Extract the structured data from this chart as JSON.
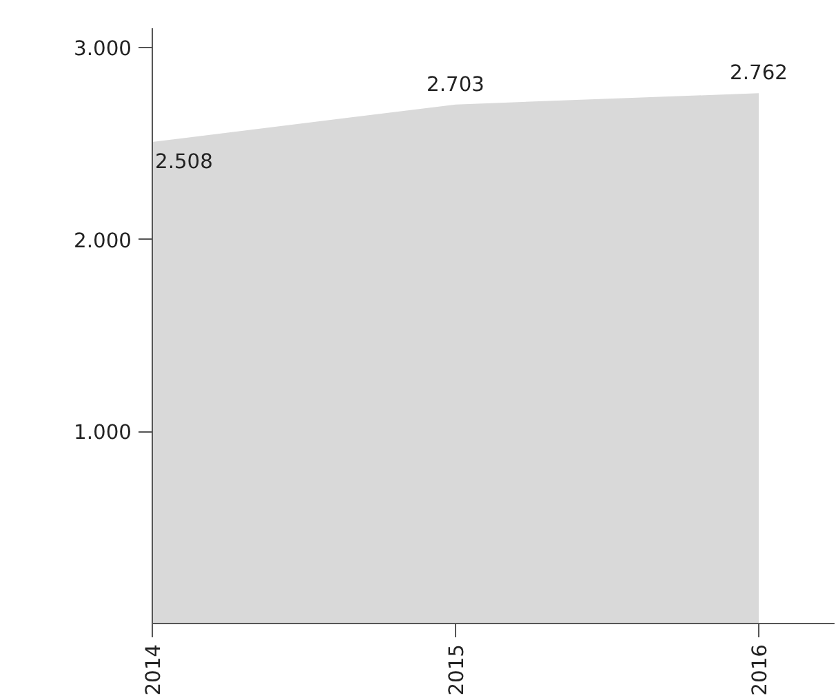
{
  "chart_data": {
    "type": "area",
    "x": [
      2014,
      2015,
      2016
    ],
    "series": [
      {
        "color": "#d9d9d9",
        "values": [
          2508,
          2703,
          2762
        ]
      }
    ],
    "value_labels": [
      "2.508",
      "2.703",
      "2.762"
    ],
    "xlim": [
      2014,
      2016.25
    ],
    "xticks": [
      2014,
      2015,
      2016
    ],
    "ylim": [
      0,
      3100
    ],
    "yticks": [
      {
        "value": 1000,
        "label": "1.000"
      },
      {
        "value": 2000,
        "label": "2.000"
      },
      {
        "value": 3000,
        "label": "3.000"
      }
    ],
    "grid": false
  }
}
